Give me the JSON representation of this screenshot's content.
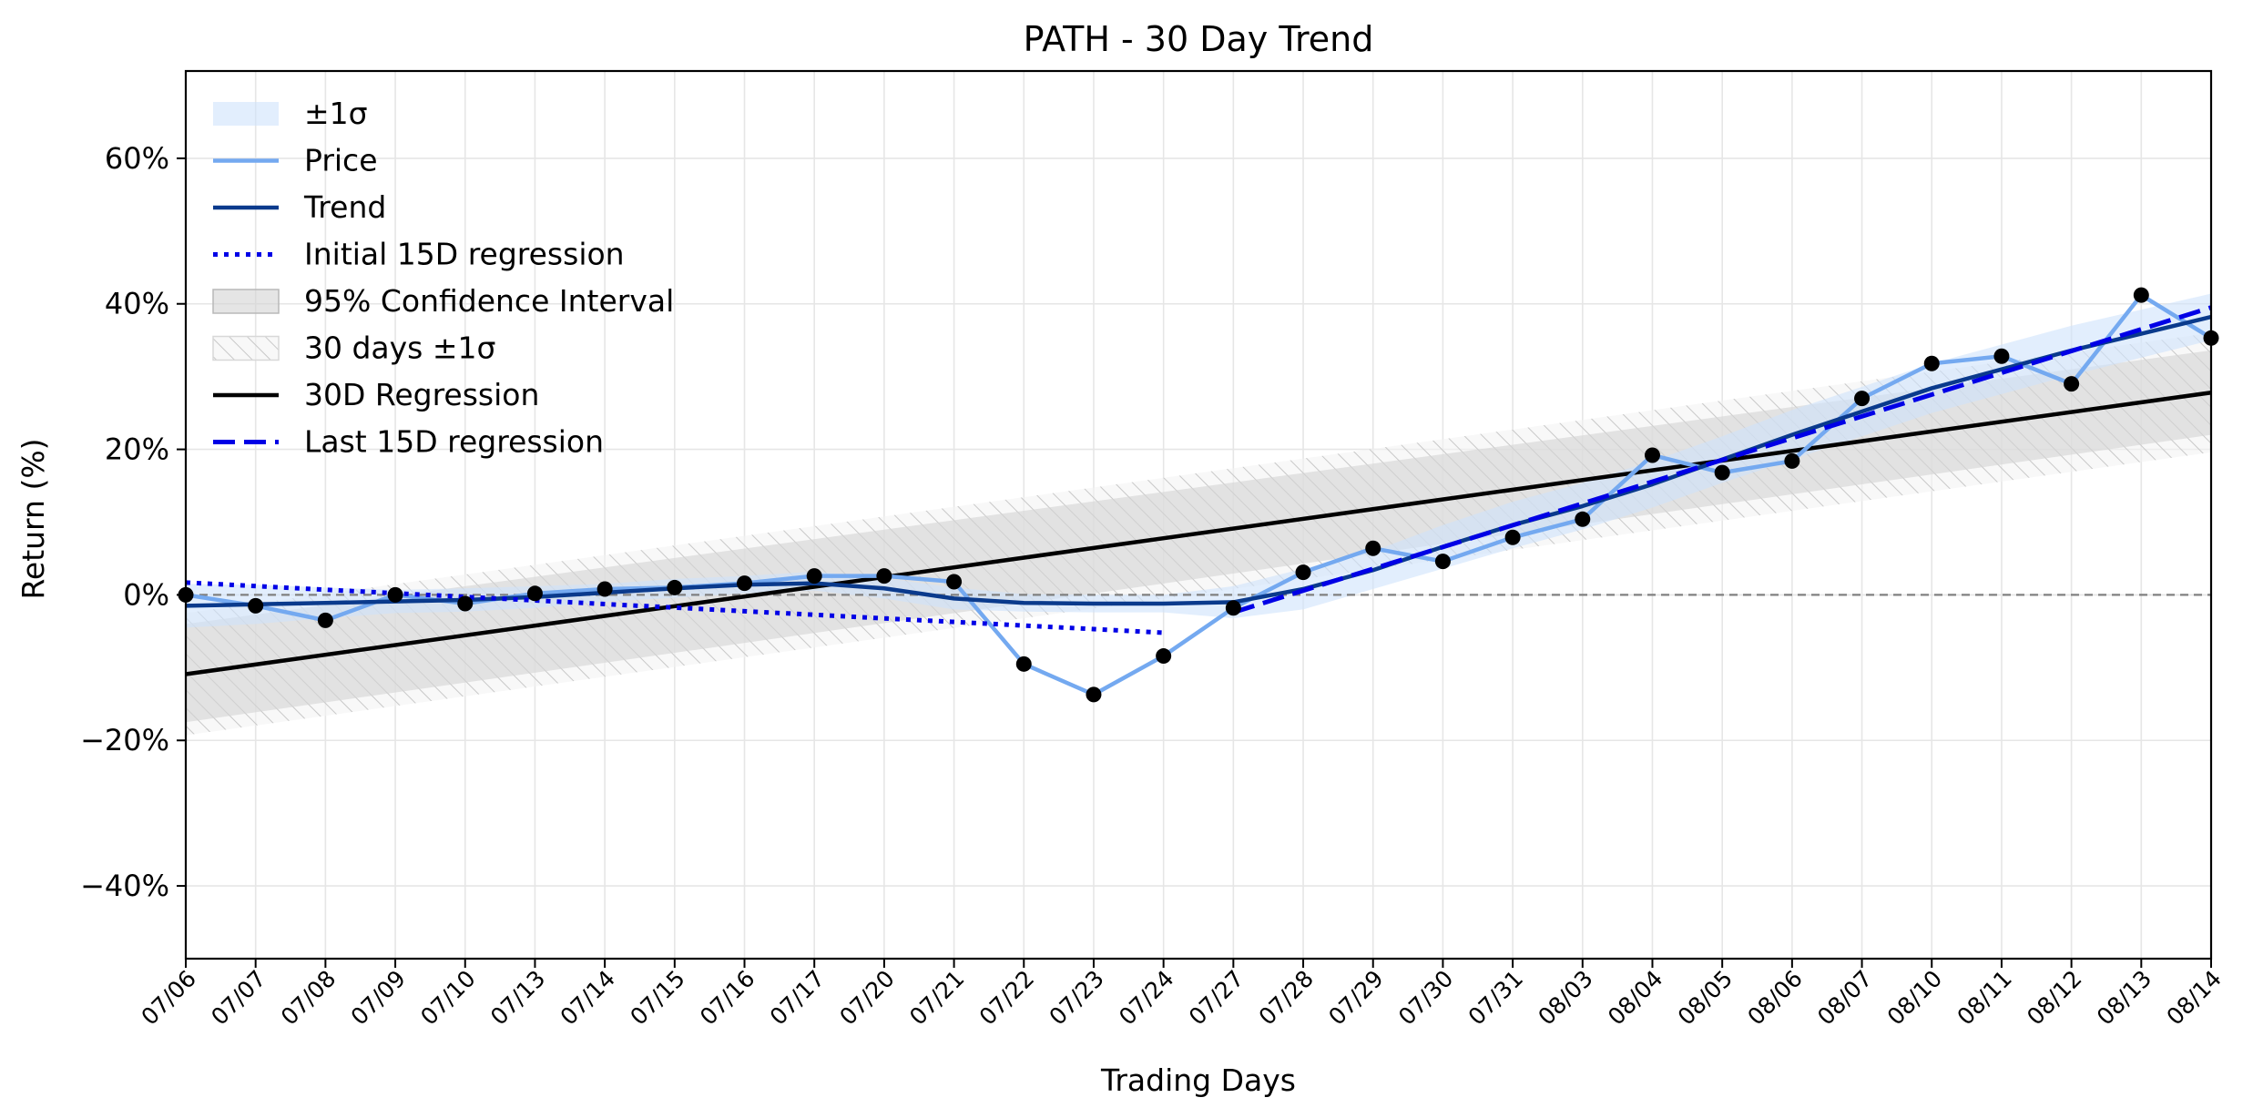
{
  "chart_data": {
    "type": "line",
    "title": "PATH - 30 Day Trend",
    "xlabel": "Trading Days",
    "ylabel": "Return (%)",
    "categories": [
      "07/06",
      "07/07",
      "07/08",
      "07/09",
      "07/10",
      "07/13",
      "07/14",
      "07/15",
      "07/16",
      "07/17",
      "07/20",
      "07/21",
      "07/22",
      "07/23",
      "07/24",
      "07/27",
      "07/28",
      "07/29",
      "07/30",
      "07/31",
      "08/03",
      "08/04",
      "08/05",
      "08/06",
      "08/07",
      "08/10",
      "08/11",
      "08/12",
      "08/13",
      "08/14"
    ],
    "ylim": [
      -50,
      72
    ],
    "yticks": [
      -40,
      -20,
      0,
      20,
      40,
      60
    ],
    "ytick_labels": [
      "−40%",
      "−20%",
      "0%",
      "20%",
      "40%",
      "60%"
    ],
    "grid": true,
    "legend_position": "upper-left",
    "zero_line": 0,
    "series": [
      {
        "name": "Price",
        "style": "line-with-markers",
        "color": "#74a9f0",
        "values": [
          0.0,
          -1.5,
          -3.5,
          0.0,
          -1.2,
          0.2,
          0.8,
          1.0,
          1.6,
          2.6,
          2.6,
          1.8,
          -9.5,
          -13.7,
          -8.4,
          -1.8,
          3.1,
          6.4,
          4.6,
          7.9,
          10.4,
          19.2,
          16.8,
          18.4,
          27.0,
          31.8,
          32.8,
          29.0,
          41.2,
          35.3
        ]
      },
      {
        "name": "Trend",
        "style": "solid",
        "color": "#0a3a8c",
        "values": [
          -1.5,
          -1.3,
          -1.1,
          -0.9,
          -0.7,
          -0.3,
          0.3,
          0.9,
          1.4,
          1.6,
          0.9,
          -0.5,
          -1.1,
          -1.2,
          -1.2,
          -1.0,
          0.8,
          3.4,
          6.6,
          9.6,
          12.2,
          15.2,
          18.6,
          22.0,
          25.2,
          28.4,
          31.0,
          33.6,
          35.9,
          38.2
        ]
      },
      {
        "name": "±1σ",
        "style": "band",
        "color": "#cfe3fb",
        "lower": [
          -4.5,
          -4.0,
          -3.2,
          -2.5,
          -2.3,
          -1.8,
          -0.9,
          -0.4,
          0.2,
          0.6,
          -0.5,
          -2.0,
          -2.3,
          -2.4,
          -2.4,
          -3.2,
          -2.0,
          0.8,
          3.6,
          6.4,
          9.0,
          12.0,
          15.4,
          18.6,
          21.8,
          25.0,
          27.6,
          30.2,
          32.6,
          35.0
        ],
        "upper": [
          1.5,
          1.4,
          1.0,
          0.7,
          0.9,
          1.2,
          1.5,
          2.2,
          2.6,
          3.2,
          2.3,
          1.0,
          0.1,
          0.0,
          0.0,
          1.2,
          3.6,
          6.0,
          9.6,
          12.8,
          15.4,
          18.4,
          21.8,
          25.4,
          28.6,
          31.8,
          34.4,
          37.0,
          39.2,
          41.4
        ]
      },
      {
        "name": "Initial 15D regression",
        "style": "dotted",
        "color": "#0000e6",
        "x_start": "07/06",
        "x_end": "07/24",
        "y_start": 1.7,
        "y_end": -5.2
      },
      {
        "name": "95% Confidence Interval",
        "style": "band",
        "color": "#d3d3d3",
        "x_start": "07/06",
        "x_end": "08/14",
        "lower_start": -17.5,
        "lower_end": 22.0,
        "upper_start": -4.0,
        "upper_end": 33.6
      },
      {
        "name": "30 days ±1σ",
        "style": "hatched-band",
        "color": "#cccccc",
        "x_start": "07/06",
        "x_end": "08/14",
        "lower_start": -19.3,
        "lower_end": 19.6,
        "upper_start": -2.5,
        "upper_end": 36.0
      },
      {
        "name": "30D Regression",
        "style": "solid",
        "color": "#000000",
        "x_start": "07/06",
        "x_end": "08/14",
        "y_start": -10.9,
        "y_end": 27.8
      },
      {
        "name": "Last 15D regression",
        "style": "dashed",
        "color": "#0000e6",
        "x_start": "07/27",
        "x_end": "08/14",
        "y_start": -2.4,
        "y_end": 39.5
      }
    ],
    "legend": [
      "±1σ",
      "Price",
      "Trend",
      "Initial 15D regression",
      "95% Confidence Interval",
      "30 days ±1σ",
      "30D Regression",
      "Last 15D regression"
    ]
  }
}
